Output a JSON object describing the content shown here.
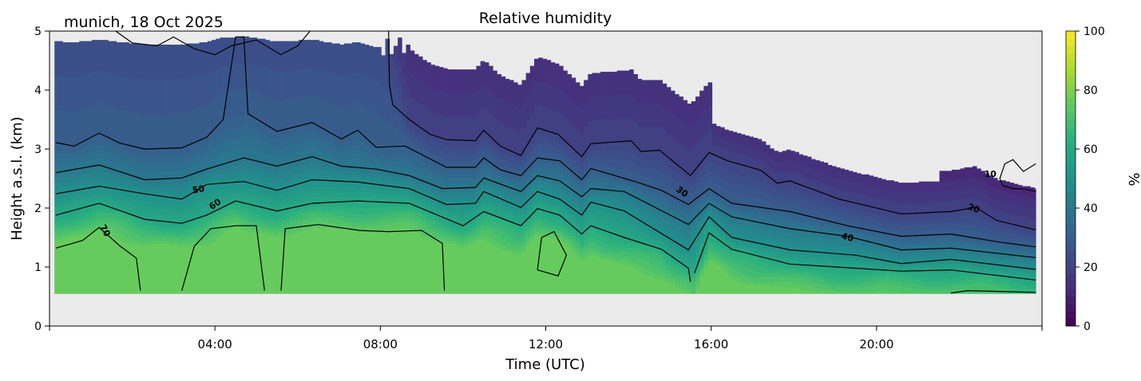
{
  "header": {
    "title": "Relative humidity",
    "location_date": "munich, 18 Oct 2025"
  },
  "chart_data": {
    "type": "heatmap",
    "title": "Relative humidity",
    "subtitle": "munich, 18 Oct 2025",
    "xlabel": "Time (UTC)",
    "ylabel": "Height a.s.l. (km)",
    "xlim": [
      0,
      24
    ],
    "ylim": [
      0,
      5
    ],
    "xticks": [
      4,
      8,
      12,
      16,
      20
    ],
    "xtick_labels": [
      "04:00",
      "08:00",
      "12:00",
      "16:00",
      "20:00"
    ],
    "yticks": [
      0,
      1,
      2,
      3,
      4,
      5
    ],
    "ytick_labels": [
      "0",
      "1",
      "2",
      "3",
      "4",
      "5"
    ],
    "data_extent": {
      "time_hours": [
        0.12,
        23.85
      ],
      "height_km": [
        0.55,
        5.0
      ]
    },
    "no_data_color": "#ebebeb",
    "colorbar": {
      "label": "%",
      "range": [
        0,
        100
      ],
      "ticks": [
        0,
        20,
        40,
        60,
        80,
        100
      ],
      "tick_labels": [
        "0",
        "20",
        "40",
        "60",
        "80",
        "100"
      ],
      "colormap": "viridis",
      "colormap_stops": [
        "#440154",
        "#472d7b",
        "#3b528b",
        "#2c728e",
        "#21918c",
        "#28ae80",
        "#5ec962",
        "#addc30",
        "#fde725"
      ],
      "band_step": 2.5
    },
    "contours": [
      {
        "level": 10,
        "label": "10",
        "label_pos": [
          22.75,
          2.58
        ],
        "segments": [
          [
            [
              23.85,
              2.75
            ],
            [
              23.55,
              2.62
            ],
            [
              23.3,
              2.82
            ],
            [
              23.1,
              2.75
            ],
            [
              22.98,
              2.5
            ],
            [
              23.05,
              2.38
            ],
            [
              23.3,
              2.33
            ],
            [
              23.6,
              2.32
            ],
            [
              23.85,
              2.28
            ]
          ]
        ]
      },
      {
        "level": 20,
        "label": "20",
        "label_pos": [
          22.35,
          2.0
        ],
        "segments": [
          [
            [
              1.6,
              5.0
            ],
            [
              2.0,
              4.8
            ],
            [
              2.6,
              4.75
            ],
            [
              3.0,
              4.9
            ],
            [
              3.5,
              4.7
            ],
            [
              4.0,
              4.6
            ],
            [
              4.4,
              4.75
            ],
            [
              5.0,
              4.85
            ],
            [
              5.6,
              4.6
            ],
            [
              6.0,
              4.75
            ],
            [
              6.3,
              5.0
            ]
          ],
          [
            [
              8.2,
              5.0
            ],
            [
              8.22,
              4.1
            ],
            [
              8.3,
              3.75
            ],
            [
              8.7,
              3.5
            ],
            [
              9.2,
              3.25
            ],
            [
              9.6,
              3.16
            ],
            [
              10.3,
              3.14
            ],
            [
              10.5,
              3.32
            ],
            [
              10.9,
              3.05
            ],
            [
              11.4,
              2.89
            ],
            [
              11.8,
              3.36
            ],
            [
              12.3,
              3.25
            ],
            [
              12.87,
              2.87
            ],
            [
              13.09,
              3.09
            ],
            [
              14.07,
              3.14
            ],
            [
              14.3,
              2.96
            ],
            [
              14.75,
              2.98
            ],
            [
              15.5,
              2.55
            ],
            [
              15.95,
              2.94
            ],
            [
              16.4,
              2.8
            ],
            [
              17.2,
              2.64
            ],
            [
              17.6,
              2.42
            ],
            [
              17.9,
              2.46
            ],
            [
              19.1,
              2.15
            ],
            [
              20.6,
              1.9
            ],
            [
              21.8,
              1.94
            ],
            [
              22.4,
              2.01
            ],
            [
              22.9,
              1.79
            ],
            [
              23.85,
              1.63
            ]
          ]
        ]
      },
      {
        "level": 30,
        "label": "30",
        "label_pos": [
          15.3,
          2.28
        ],
        "segments": [
          [
            [
              0.15,
              3.11
            ],
            [
              0.6,
              3.05
            ],
            [
              1.2,
              3.27
            ],
            [
              1.7,
              3.1
            ],
            [
              2.3,
              3.0
            ],
            [
              3.2,
              3.02
            ],
            [
              3.8,
              3.2
            ],
            [
              4.2,
              3.5
            ],
            [
              4.5,
              4.9
            ],
            [
              4.7,
              4.9
            ],
            [
              4.8,
              3.6
            ],
            [
              5.5,
              3.3
            ],
            [
              6.35,
              3.45
            ],
            [
              7.06,
              3.17
            ],
            [
              7.45,
              3.32
            ],
            [
              7.9,
              3.03
            ],
            [
              8.6,
              3.05
            ],
            [
              9.6,
              2.69
            ],
            [
              10.3,
              2.69
            ],
            [
              10.5,
              2.85
            ],
            [
              10.9,
              2.65
            ],
            [
              11.4,
              2.55
            ],
            [
              11.8,
              2.85
            ],
            [
              12.34,
              2.8
            ],
            [
              12.87,
              2.48
            ],
            [
              13.09,
              2.67
            ],
            [
              14.2,
              2.44
            ],
            [
              14.8,
              2.3
            ],
            [
              15.45,
              2.06
            ],
            [
              15.95,
              2.33
            ],
            [
              16.5,
              2.08
            ],
            [
              17.9,
              1.94
            ],
            [
              19.3,
              1.7
            ],
            [
              20.6,
              1.52
            ],
            [
              21.8,
              1.56
            ],
            [
              22.9,
              1.43
            ],
            [
              23.85,
              1.34
            ]
          ]
        ]
      },
      {
        "level": 40,
        "label": "40",
        "label_pos": [
          19.3,
          1.51
        ],
        "segments": [
          [
            [
              0.15,
              2.6
            ],
            [
              1.2,
              2.73
            ],
            [
              2.3,
              2.48
            ],
            [
              3.2,
              2.51
            ],
            [
              3.8,
              2.66
            ],
            [
              4.7,
              2.85
            ],
            [
              5.5,
              2.71
            ],
            [
              6.35,
              2.87
            ],
            [
              7.06,
              2.71
            ],
            [
              7.9,
              2.66
            ],
            [
              8.7,
              2.55
            ],
            [
              9.5,
              2.33
            ],
            [
              10.3,
              2.35
            ],
            [
              10.5,
              2.51
            ],
            [
              11.4,
              2.28
            ],
            [
              11.8,
              2.55
            ],
            [
              12.34,
              2.46
            ],
            [
              12.87,
              2.19
            ],
            [
              13.09,
              2.33
            ],
            [
              13.9,
              2.28
            ],
            [
              15.45,
              1.72
            ],
            [
              15.95,
              2.08
            ],
            [
              16.5,
              1.85
            ],
            [
              17.9,
              1.65
            ],
            [
              19.3,
              1.52
            ],
            [
              20.6,
              1.29
            ],
            [
              21.8,
              1.32
            ],
            [
              23.85,
              1.16
            ]
          ]
        ]
      },
      {
        "level": 50,
        "label": "50",
        "label_pos": [
          3.6,
          2.32
        ],
        "segments": [
          [
            [
              0.15,
              2.24
            ],
            [
              1.2,
              2.37
            ],
            [
              2.3,
              2.24
            ],
            [
              3.2,
              2.15
            ],
            [
              3.8,
              2.4
            ],
            [
              4.7,
              2.45
            ],
            [
              5.5,
              2.3
            ],
            [
              6.35,
              2.48
            ],
            [
              7.45,
              2.44
            ],
            [
              8.7,
              2.33
            ],
            [
              9.6,
              2.06
            ],
            [
              10.3,
              2.08
            ],
            [
              10.5,
              2.28
            ],
            [
              11.4,
              2.01
            ],
            [
              11.8,
              2.28
            ],
            [
              12.34,
              2.15
            ],
            [
              12.87,
              1.88
            ],
            [
              13.09,
              2.1
            ],
            [
              13.9,
              1.95
            ],
            [
              15.45,
              1.29
            ],
            [
              15.95,
              1.85
            ],
            [
              16.5,
              1.5
            ],
            [
              17.9,
              1.29
            ],
            [
              19.5,
              1.2
            ],
            [
              20.6,
              1.06
            ],
            [
              21.8,
              1.13
            ],
            [
              23.85,
              0.96
            ]
          ]
        ]
      },
      {
        "level": 60,
        "label": "60",
        "label_pos": [
          4.0,
          2.07
        ],
        "segments": [
          [
            [
              0.15,
              1.88
            ],
            [
              1.2,
              2.08
            ],
            [
              2.3,
              1.81
            ],
            [
              3.2,
              1.74
            ],
            [
              3.8,
              1.88
            ],
            [
              4.5,
              2.12
            ],
            [
              5.5,
              1.95
            ],
            [
              6.35,
              2.08
            ],
            [
              7.45,
              2.12
            ],
            [
              8.7,
              2.08
            ],
            [
              10.0,
              1.7
            ],
            [
              10.5,
              1.94
            ],
            [
              11.4,
              1.7
            ],
            [
              11.8,
              1.99
            ],
            [
              12.34,
              1.88
            ],
            [
              12.87,
              1.56
            ],
            [
              13.09,
              1.7
            ],
            [
              13.9,
              1.5
            ],
            [
              14.8,
              1.3
            ],
            [
              15.45,
              0.98
            ],
            [
              15.5,
              0.75
            ]
          ],
          [
            [
              15.6,
              0.9
            ],
            [
              15.95,
              1.58
            ],
            [
              16.5,
              1.3
            ],
            [
              17.9,
              1.05
            ],
            [
              19.5,
              0.98
            ],
            [
              20.6,
              0.93
            ],
            [
              21.8,
              0.95
            ],
            [
              23.85,
              0.78
            ]
          ]
        ]
      },
      {
        "level": 70,
        "label": "70",
        "label_pos": [
          1.35,
          1.62
        ],
        "segments": [
          [
            [
              0.15,
              1.32
            ],
            [
              0.8,
              1.45
            ],
            [
              1.2,
              1.67
            ],
            [
              1.7,
              1.36
            ],
            [
              2.1,
              1.15
            ],
            [
              2.2,
              0.6
            ]
          ],
          [
            [
              3.2,
              0.6
            ],
            [
              3.5,
              1.35
            ],
            [
              3.9,
              1.65
            ],
            [
              4.5,
              1.7
            ],
            [
              5.0,
              1.7
            ],
            [
              5.2,
              0.6
            ]
          ],
          [
            [
              5.6,
              0.6
            ],
            [
              5.7,
              1.65
            ],
            [
              6.5,
              1.72
            ],
            [
              7.5,
              1.62
            ],
            [
              8.2,
              1.6
            ],
            [
              9.0,
              1.62
            ],
            [
              9.5,
              1.4
            ],
            [
              9.55,
              0.6
            ]
          ],
          [
            [
              11.8,
              0.95
            ],
            [
              11.9,
              1.5
            ],
            [
              12.2,
              1.6
            ],
            [
              12.5,
              1.2
            ],
            [
              12.3,
              0.85
            ],
            [
              11.8,
              0.95
            ]
          ],
          [
            [
              21.8,
              0.56
            ],
            [
              22.2,
              0.6
            ],
            [
              23.85,
              0.57
            ]
          ]
        ]
      }
    ]
  }
}
